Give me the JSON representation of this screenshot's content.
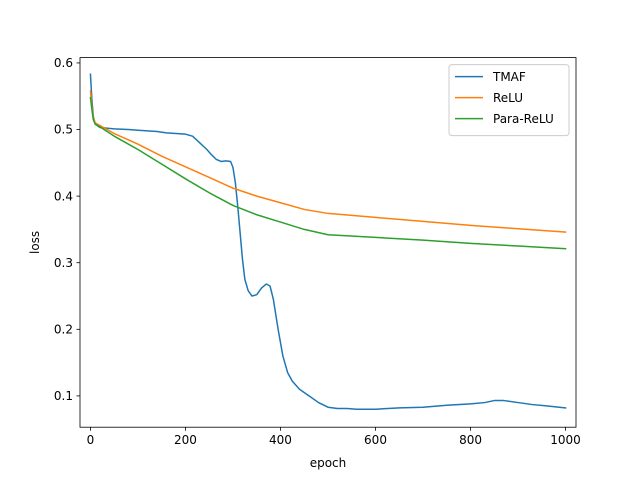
{
  "chart_data": {
    "type": "line",
    "xlabel": "epoch",
    "ylabel": "loss",
    "xlim": [
      -22,
      1022
    ],
    "ylim": [
      0.053,
      0.608
    ],
    "xticks": [
      0,
      200,
      400,
      600,
      800,
      1000
    ],
    "yticks": [
      0.1,
      0.2,
      0.3,
      0.4,
      0.5,
      0.6
    ],
    "grid": false,
    "legend_position": "top-right",
    "series": [
      {
        "name": "TMAF",
        "color": "#1f77b4",
        "points": [
          [
            0,
            0.583
          ],
          [
            3,
            0.545
          ],
          [
            6,
            0.52
          ],
          [
            10,
            0.508
          ],
          [
            20,
            0.503
          ],
          [
            50,
            0.501
          ],
          [
            80,
            0.5
          ],
          [
            100,
            0.499
          ],
          [
            140,
            0.497
          ],
          [
            160,
            0.495
          ],
          [
            200,
            0.493
          ],
          [
            215,
            0.49
          ],
          [
            230,
            0.48
          ],
          [
            245,
            0.47
          ],
          [
            255,
            0.462
          ],
          [
            265,
            0.455
          ],
          [
            275,
            0.452
          ],
          [
            285,
            0.453
          ],
          [
            295,
            0.452
          ],
          [
            300,
            0.443
          ],
          [
            305,
            0.42
          ],
          [
            310,
            0.385
          ],
          [
            315,
            0.345
          ],
          [
            320,
            0.305
          ],
          [
            325,
            0.275
          ],
          [
            332,
            0.258
          ],
          [
            340,
            0.25
          ],
          [
            350,
            0.252
          ],
          [
            360,
            0.262
          ],
          [
            370,
            0.268
          ],
          [
            378,
            0.265
          ],
          [
            385,
            0.245
          ],
          [
            395,
            0.2
          ],
          [
            405,
            0.16
          ],
          [
            415,
            0.135
          ],
          [
            425,
            0.122
          ],
          [
            440,
            0.11
          ],
          [
            460,
            0.1
          ],
          [
            480,
            0.09
          ],
          [
            500,
            0.083
          ],
          [
            520,
            0.081
          ],
          [
            540,
            0.081
          ],
          [
            560,
            0.08
          ],
          [
            600,
            0.08
          ],
          [
            650,
            0.082
          ],
          [
            700,
            0.083
          ],
          [
            750,
            0.086
          ],
          [
            800,
            0.088
          ],
          [
            830,
            0.09
          ],
          [
            850,
            0.093
          ],
          [
            870,
            0.093
          ],
          [
            900,
            0.09
          ],
          [
            930,
            0.087
          ],
          [
            960,
            0.085
          ],
          [
            1000,
            0.082
          ]
        ]
      },
      {
        "name": "ReLU",
        "color": "#ff7f0e",
        "points": [
          [
            0,
            0.558
          ],
          [
            3,
            0.535
          ],
          [
            6,
            0.518
          ],
          [
            10,
            0.51
          ],
          [
            20,
            0.506
          ],
          [
            50,
            0.494
          ],
          [
            100,
            0.478
          ],
          [
            150,
            0.46
          ],
          [
            200,
            0.444
          ],
          [
            250,
            0.428
          ],
          [
            300,
            0.412
          ],
          [
            350,
            0.4
          ],
          [
            400,
            0.39
          ],
          [
            450,
            0.38
          ],
          [
            500,
            0.374
          ],
          [
            600,
            0.368
          ],
          [
            700,
            0.362
          ],
          [
            800,
            0.356
          ],
          [
            900,
            0.351
          ],
          [
            1000,
            0.346
          ]
        ]
      },
      {
        "name": "Para-ReLU",
        "color": "#2ca02c",
        "points": [
          [
            0,
            0.548
          ],
          [
            3,
            0.53
          ],
          [
            6,
            0.515
          ],
          [
            10,
            0.508
          ],
          [
            20,
            0.504
          ],
          [
            50,
            0.49
          ],
          [
            100,
            0.47
          ],
          [
            150,
            0.448
          ],
          [
            200,
            0.426
          ],
          [
            250,
            0.405
          ],
          [
            300,
            0.386
          ],
          [
            350,
            0.372
          ],
          [
            400,
            0.361
          ],
          [
            450,
            0.35
          ],
          [
            500,
            0.342
          ],
          [
            600,
            0.338
          ],
          [
            700,
            0.334
          ],
          [
            800,
            0.329
          ],
          [
            900,
            0.325
          ],
          [
            1000,
            0.321
          ]
        ]
      }
    ]
  }
}
